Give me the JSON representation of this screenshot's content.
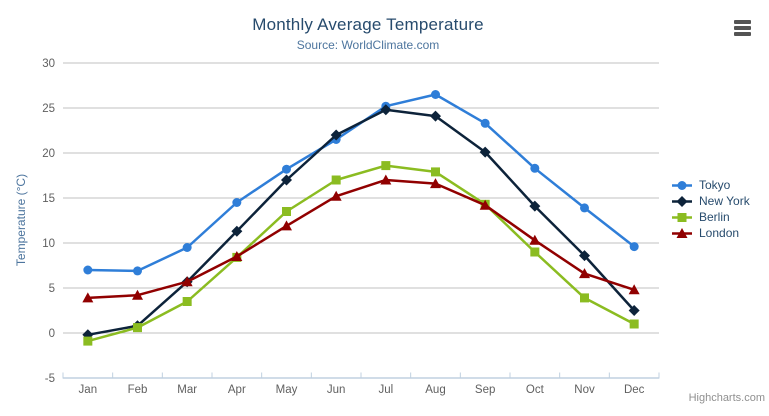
{
  "chart": {
    "credit": "Highcharts.com"
  },
  "chart_data": {
    "type": "line",
    "title": "Monthly Average Temperature",
    "subtitle": "Source: WorldClimate.com",
    "categories": [
      "Jan",
      "Feb",
      "Mar",
      "Apr",
      "May",
      "Jun",
      "Jul",
      "Aug",
      "Sep",
      "Oct",
      "Nov",
      "Dec"
    ],
    "xlabel": "",
    "ylabel": "Temperature (°C)",
    "ylim": [
      -5,
      30
    ],
    "yticks": [
      -5,
      0,
      5,
      10,
      15,
      20,
      25,
      30
    ],
    "grid": true,
    "legend_position": "right",
    "series": [
      {
        "name": "Tokyo",
        "color": "#2f7ed8",
        "marker": "circle",
        "values": [
          7.0,
          6.9,
          9.5,
          14.5,
          18.2,
          21.5,
          25.2,
          26.5,
          23.3,
          18.3,
          13.9,
          9.6
        ]
      },
      {
        "name": "New York",
        "color": "#0d233a",
        "marker": "diamond",
        "values": [
          -0.2,
          0.8,
          5.7,
          11.3,
          17.0,
          22.0,
          24.8,
          24.1,
          20.1,
          14.1,
          8.6,
          2.5
        ]
      },
      {
        "name": "Berlin",
        "color": "#8bbc21",
        "marker": "square",
        "values": [
          -0.9,
          0.6,
          3.5,
          8.4,
          13.5,
          17.0,
          18.6,
          17.9,
          14.3,
          9.0,
          3.9,
          1.0
        ]
      },
      {
        "name": "London",
        "color": "#910000",
        "marker": "triangle",
        "values": [
          3.9,
          4.2,
          5.7,
          8.5,
          11.9,
          15.2,
          17.0,
          16.6,
          14.2,
          10.3,
          6.6,
          4.8
        ]
      }
    ],
    "colors": {
      "title": "#274b6d",
      "subtitle": "#4d759e",
      "axis_title": "#4d759e",
      "axis_label": "#606060",
      "grid": "#C0C0C0",
      "axis_line": "#C0D0E0",
      "legend_text": "#274b6d",
      "credit": "#909090",
      "menu_icon": "#545454"
    }
  }
}
